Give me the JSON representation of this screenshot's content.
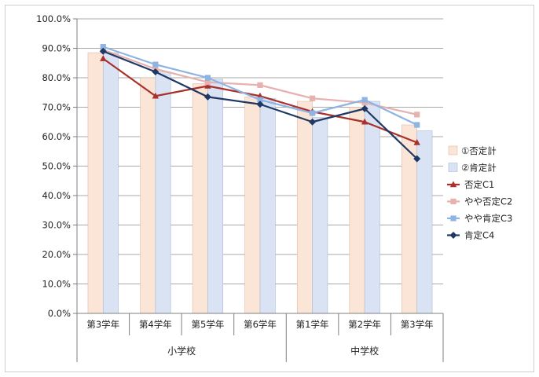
{
  "chart_data": {
    "type": "bar",
    "categories": [
      "第3学年",
      "第4学年",
      "第5学年",
      "第6学年",
      "第1学年",
      "第2学年",
      "第3学年"
    ],
    "groups": [
      {
        "label": "小学校",
        "count": 4
      },
      {
        "label": "中学校",
        "count": 3
      }
    ],
    "ylim": [
      0,
      100
    ],
    "yticks": [
      "0.0%",
      "10.0%",
      "20.0%",
      "30.0%",
      "40.0%",
      "50.0%",
      "60.0%",
      "70.0%",
      "80.0%",
      "90.0%",
      "100.0%"
    ],
    "grid": true,
    "legend_position": "right",
    "bar_series": [
      {
        "name": "①否定計",
        "values": [
          88.5,
          80.0,
          78.0,
          73.5,
          72.0,
          70.0,
          64.0
        ],
        "fill": "#fbe5d6",
        "stroke": "#e0b9a0"
      },
      {
        "name": "②肯定計",
        "values": [
          88.5,
          82.0,
          79.5,
          73.0,
          66.5,
          72.0,
          62.0
        ],
        "fill": "#dae3f3",
        "stroke": "#a9b9d6"
      }
    ],
    "line_series": [
      {
        "name": "否定C1",
        "values": [
          86.5,
          73.8,
          77.2,
          73.8,
          68.5,
          65.0,
          58.0
        ],
        "color": "#a9302c",
        "marker": "triangle"
      },
      {
        "name": "やや否定C2",
        "values": [
          89.5,
          83.0,
          78.5,
          77.5,
          73.0,
          71.5,
          67.5
        ],
        "color": "#e6b1ae",
        "marker": "square"
      },
      {
        "name": "やや肯定C3",
        "values": [
          90.5,
          84.5,
          80.0,
          72.5,
          68.0,
          72.5,
          64.0
        ],
        "color": "#8eb4e3",
        "marker": "square"
      },
      {
        "name": "肯定C4",
        "values": [
          89.0,
          82.0,
          73.5,
          71.0,
          65.0,
          69.5,
          52.5
        ],
        "color": "#1f3864",
        "marker": "diamond"
      }
    ]
  }
}
